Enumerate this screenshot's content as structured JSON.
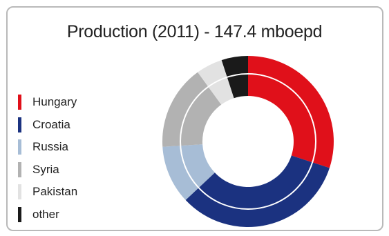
{
  "chart_data": {
    "type": "pie",
    "title": "Production (2011) - 147.4 mboepd",
    "categories": [
      "Hungary",
      "Croatia",
      "Russia",
      "Syria",
      "Pakistan",
      "other"
    ],
    "values": [
      30,
      33,
      11,
      16,
      5,
      5
    ],
    "unit": "%",
    "colors": [
      "#e0101a",
      "#1b3280",
      "#a7bdd6",
      "#b2b2b2",
      "#e2e2e2",
      "#1a1a1a"
    ],
    "legend_position": "left"
  }
}
